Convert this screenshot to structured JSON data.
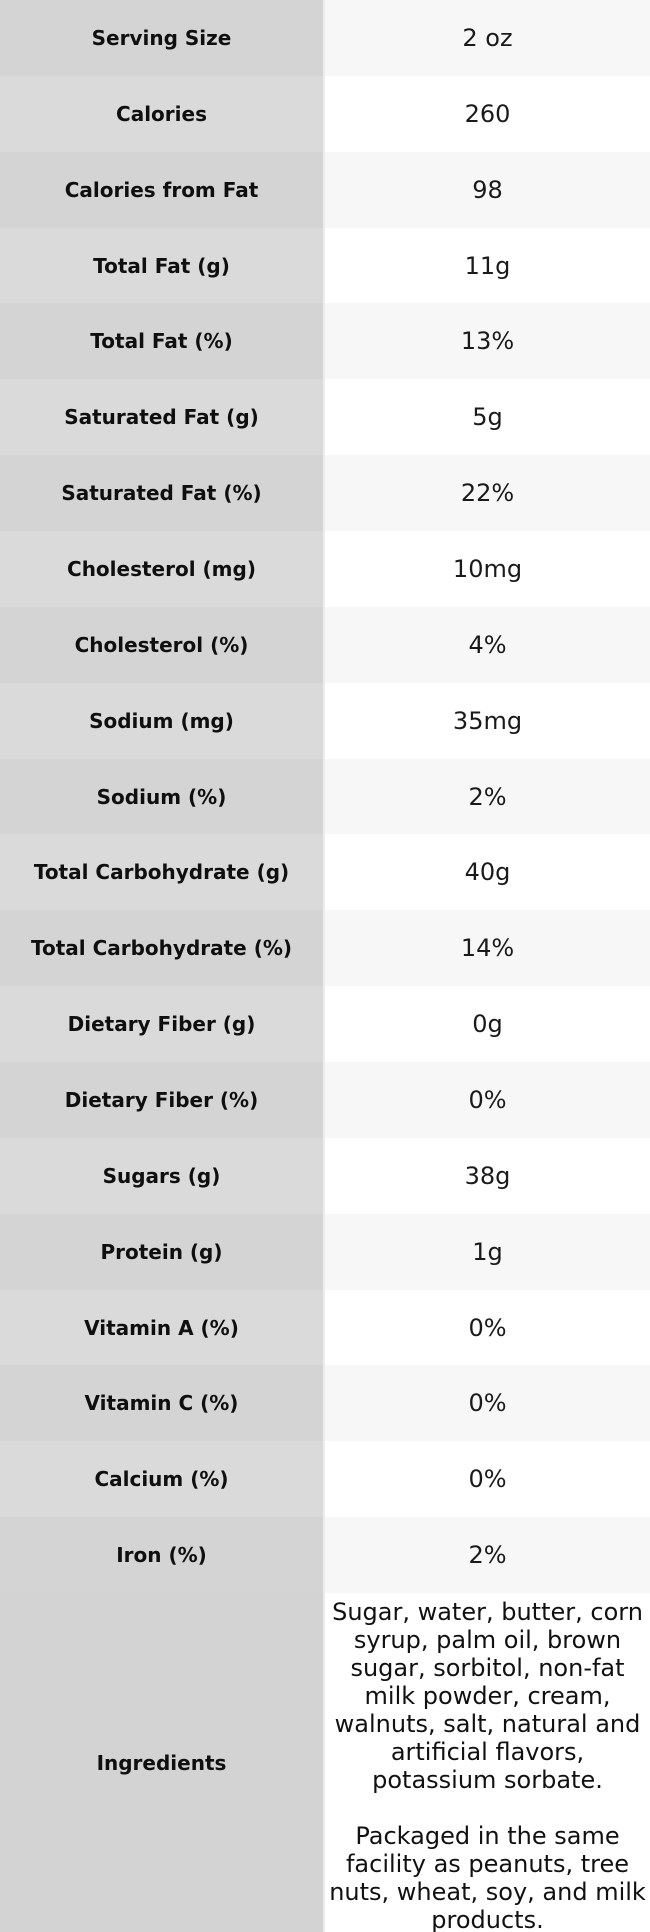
{
  "colors": {
    "label_column_shade_a": "#d4d4d4",
    "label_column_shade_b": "#dadada",
    "label_column_ingredients": "#d3d3d3",
    "value_column_shaded": "#f7f7f7",
    "value_column_plain": "#ffffff",
    "text_color": "#111111"
  },
  "table": {
    "rows": [
      {
        "label": "Serving Size",
        "value": "2 oz"
      },
      {
        "label": "Calories",
        "value": "260"
      },
      {
        "label": "Calories from Fat",
        "value": "98"
      },
      {
        "label": "Total Fat (g)",
        "value": "11g"
      },
      {
        "label": "Total Fat (%)",
        "value": "13%"
      },
      {
        "label": "Saturated Fat (g)",
        "value": "5g"
      },
      {
        "label": "Saturated Fat (%)",
        "value": "22%"
      },
      {
        "label": "Cholesterol (mg)",
        "value": "10mg"
      },
      {
        "label": "Cholesterol (%)",
        "value": "4%"
      },
      {
        "label": "Sodium (mg)",
        "value": "35mg"
      },
      {
        "label": "Sodium (%)",
        "value": "2%"
      },
      {
        "label": "Total Carbohydrate (g)",
        "value": "40g"
      },
      {
        "label": "Total Carbohydrate (%)",
        "value": "14%"
      },
      {
        "label": "Dietary Fiber (g)",
        "value": "0g"
      },
      {
        "label": "Dietary Fiber (%)",
        "value": "0%"
      },
      {
        "label": "Sugars (g)",
        "value": "38g"
      },
      {
        "label": "Protein (g)",
        "value": "1g"
      },
      {
        "label": "Vitamin A (%)",
        "value": "0%"
      },
      {
        "label": "Vitamin C (%)",
        "value": "0%"
      },
      {
        "label": "Calcium (%)",
        "value": "0%"
      },
      {
        "label": "Iron (%)",
        "value": "2%"
      }
    ],
    "ingredients": {
      "label": "Ingredients",
      "paragraphs": [
        "Sugar, water, butter, corn syrup, palm oil, brown sugar, sorbitol, non-fat milk powder, cream, walnuts, salt, natural and artificial flavors, potassium sorbate.",
        "Packaged in the same facility as peanuts, tree nuts, wheat, soy, and milk products."
      ]
    }
  },
  "chart_data": {
    "type": "table",
    "columns": [
      "nutrient",
      "value"
    ],
    "rows": [
      [
        "Serving Size",
        "2 oz"
      ],
      [
        "Calories",
        "260"
      ],
      [
        "Calories from Fat",
        "98"
      ],
      [
        "Total Fat (g)",
        "11g"
      ],
      [
        "Total Fat (%)",
        "13%"
      ],
      [
        "Saturated Fat (g)",
        "5g"
      ],
      [
        "Saturated Fat (%)",
        "22%"
      ],
      [
        "Cholesterol (mg)",
        "10mg"
      ],
      [
        "Cholesterol (%)",
        "4%"
      ],
      [
        "Sodium (mg)",
        "35mg"
      ],
      [
        "Sodium (%)",
        "2%"
      ],
      [
        "Total Carbohydrate (g)",
        "40g"
      ],
      [
        "Total Carbohydrate (%)",
        "14%"
      ],
      [
        "Dietary Fiber (g)",
        "0g"
      ],
      [
        "Dietary Fiber (%)",
        "0%"
      ],
      [
        "Sugars (g)",
        "38g"
      ],
      [
        "Protein (g)",
        "1g"
      ],
      [
        "Vitamin A (%)",
        "0%"
      ],
      [
        "Vitamin C (%)",
        "0%"
      ],
      [
        "Calcium (%)",
        "0%"
      ],
      [
        "Iron (%)",
        "2%"
      ],
      [
        "Ingredients",
        "Sugar, water, butter, corn syrup, palm oil, brown sugar, sorbitol, non-fat milk powder, cream, walnuts, salt, natural and artificial flavors, potassium sorbate. Packaged in the same facility as peanuts, tree nuts, wheat, soy, and milk products."
      ]
    ]
  }
}
